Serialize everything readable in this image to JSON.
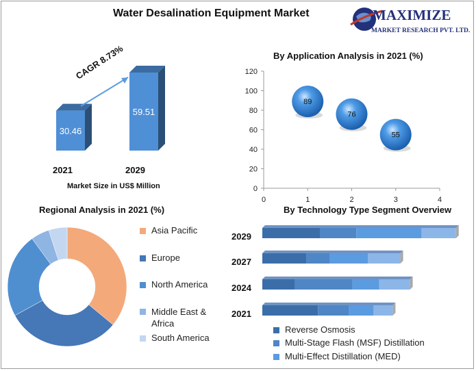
{
  "header": {
    "title": "Water Desalination Equipment Market",
    "logo": {
      "line1": "MAXIMIZE",
      "line2": "MARKET RESEARCH PVT. LTD."
    }
  },
  "chart_data": [
    {
      "type": "bar",
      "categories": [
        "2021",
        "2029"
      ],
      "values": [
        30.46,
        59.51
      ],
      "value_labels": [
        "30.46",
        "59.51"
      ],
      "annotation": "CAGR 8.73%",
      "xlabel": "Market Size in US$ Million",
      "color": "#4f8fd6"
    },
    {
      "type": "scatter",
      "title": "By Application Analysis in 2021 (%)",
      "points": [
        {
          "x": 1,
          "y": 89,
          "label": "89"
        },
        {
          "x": 2,
          "y": 76,
          "label": "76"
        },
        {
          "x": 3,
          "y": 55,
          "label": "55"
        }
      ],
      "xlim": [
        0,
        4
      ],
      "ylim": [
        0,
        120
      ],
      "xticks": [
        "0",
        "1",
        "2",
        "3",
        "4"
      ],
      "yticks": [
        "0",
        "20",
        "40",
        "60",
        "80",
        "100",
        "120"
      ],
      "marker": "bubble",
      "color": "#2e7fd1"
    },
    {
      "type": "pie",
      "title": "Regional Analysis in 2021 (%)",
      "donut": true,
      "slices": [
        {
          "label": "Asia Pacific",
          "value": 36,
          "color": "#f4a97a"
        },
        {
          "label": "Europe",
          "value": 31,
          "color": "#4677b6"
        },
        {
          "label": "North America",
          "value": 23,
          "color": "#4f8fd0"
        },
        {
          "label": "Middle East & Africa",
          "value": 5,
          "color": "#8fb5e3"
        },
        {
          "label": "South America",
          "value": 5,
          "color": "#c3d7f0"
        }
      ]
    },
    {
      "type": "bar",
      "orientation": "horizontal",
      "stacked": true,
      "title": "By Technology Type Segment Overview",
      "categories": [
        "2029",
        "2027",
        "2024",
        "2021"
      ],
      "series": [
        {
          "name": "Reverse Osmosis",
          "values": [
            30,
            23,
            17,
            29
          ],
          "color": "#3b6ea8"
        },
        {
          "name": "Multi-Stage Flash (MSF) Distillation",
          "values": [
            19,
            12,
            30,
            16
          ],
          "color": "#4f86c6"
        },
        {
          "name": "Multi-Effect Distillation (MED)",
          "values": [
            34,
            20,
            14,
            13
          ],
          "color": "#5b9be0"
        },
        {
          "name": "",
          "values": [
            18,
            17,
            16,
            10
          ],
          "color": "#8db6e8"
        }
      ]
    }
  ]
}
